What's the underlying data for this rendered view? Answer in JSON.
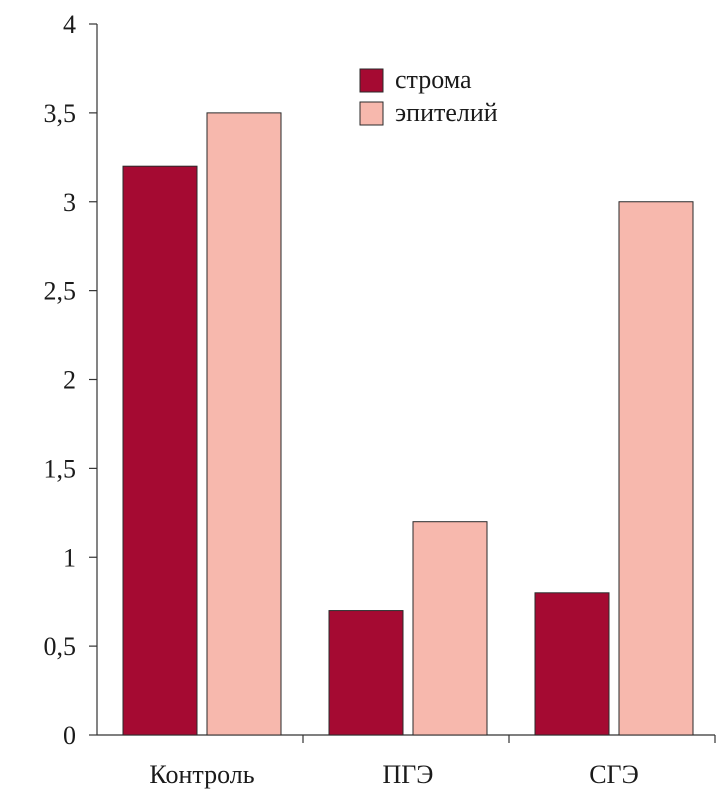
{
  "chart_data": {
    "type": "bar",
    "categories": [
      "Контроль",
      "ПГЭ",
      "СГЭ"
    ],
    "series": [
      {
        "name": "строма",
        "values": [
          3.2,
          0.7,
          0.8
        ],
        "color": "#a50a32"
      },
      {
        "name": "эпителий",
        "values": [
          3.5,
          1.2,
          3.0
        ],
        "color": "#f7b8ad"
      }
    ],
    "ylim": [
      0,
      4
    ],
    "yticks": [
      0,
      0.5,
      1,
      1.5,
      2,
      2.5,
      3,
      3.5,
      4
    ],
    "ytick_labels": [
      "0",
      "0,5",
      "1",
      "1,5",
      "2",
      "2,5",
      "3",
      "3,5",
      "4"
    ],
    "title": "",
    "xlabel": "",
    "ylabel": "",
    "grid": false,
    "legend_position": "top-center"
  }
}
